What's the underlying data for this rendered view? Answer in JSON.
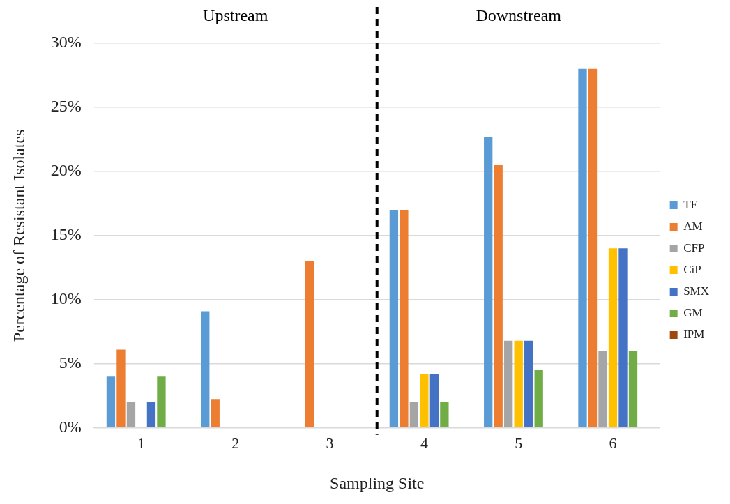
{
  "chart_data": {
    "type": "bar",
    "xlabel": "Sampling Site",
    "ylabel": "Percentage of Resistant Isolates",
    "x": [
      1,
      2,
      3,
      4,
      5,
      6
    ],
    "xlim": [
      0.5,
      6.5
    ],
    "xticks": [
      1,
      2,
      3,
      4,
      5,
      6
    ],
    "series": [
      {
        "name": "TE",
        "color": "#5b9bd5",
        "values": [
          4.0,
          9.1,
          0,
          17.0,
          22.7,
          28.0
        ]
      },
      {
        "name": "AM",
        "color": "#ed7d31",
        "values": [
          6.1,
          2.2,
          13.0,
          17.0,
          20.5,
          28.0
        ]
      },
      {
        "name": "CFP",
        "color": "#a5a5a5",
        "values": [
          2.0,
          0,
          0,
          2.0,
          6.8,
          6.0
        ]
      },
      {
        "name": "CiP",
        "color": "#ffc000",
        "values": [
          0,
          0,
          0,
          4.2,
          6.8,
          14.0
        ]
      },
      {
        "name": "SMX",
        "color": "#4472c4",
        "values": [
          2.0,
          0,
          0,
          4.2,
          6.8,
          14.0
        ]
      },
      {
        "name": "GM",
        "color": "#70ad47",
        "values": [
          4.0,
          0,
          0,
          2.0,
          4.5,
          6.0
        ]
      },
      {
        "name": "IPM",
        "color": "#9e480e",
        "values": [
          0,
          0,
          0,
          0,
          0,
          0
        ]
      }
    ],
    "ylim": [
      0,
      30
    ],
    "yticks": [
      {
        "value": 0,
        "label": "0%"
      },
      {
        "value": 5,
        "label": "5%"
      },
      {
        "value": 10,
        "label": "10%"
      },
      {
        "value": 15,
        "label": "15%"
      },
      {
        "value": 20,
        "label": "20%"
      },
      {
        "value": 25,
        "label": "25%"
      },
      {
        "value": 30,
        "label": "30%"
      }
    ],
    "grid": "y",
    "legend": "right",
    "ref_lines": [
      {
        "axis": "x",
        "value": 3.5,
        "color": "#000000",
        "line_style": "dashed"
      }
    ],
    "annotations": [
      "Upstream",
      "Downstream"
    ]
  }
}
